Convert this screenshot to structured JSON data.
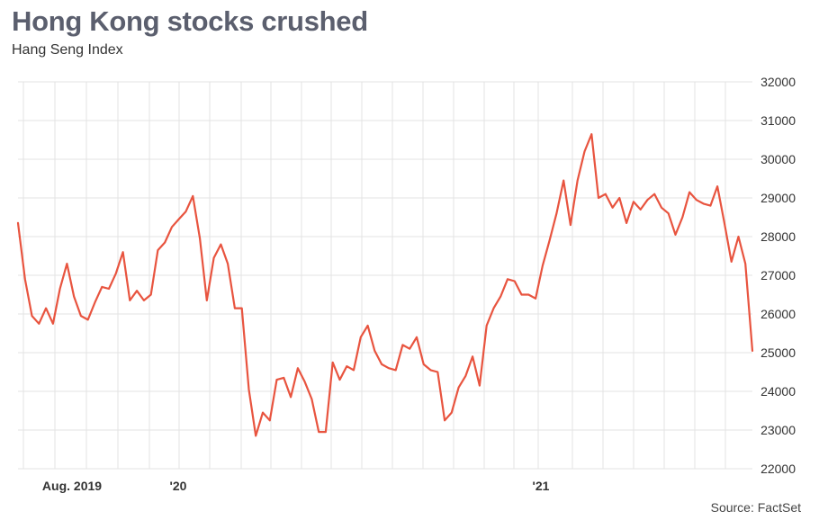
{
  "title": "Hong Kong stocks crushed",
  "subtitle": "Hang Seng Index",
  "source": "Source: FactSet",
  "colors": {
    "line": "#e8543f",
    "grid": "#e3e3e3",
    "title": "#5b5f6e"
  },
  "chart_data": {
    "type": "line",
    "title": "Hong Kong stocks crushed",
    "subtitle": "Hang Seng Index",
    "xlabel": "",
    "ylabel": "",
    "ylim": [
      22000,
      32000
    ],
    "y_ticks": [
      22000,
      23000,
      24000,
      25000,
      26000,
      27000,
      28000,
      29000,
      30000,
      31000,
      32000
    ],
    "y_axis_position": "right",
    "x_tick_labels": [
      "Aug. 2019",
      "'20",
      "'21"
    ],
    "grid": true,
    "frequency": "weekly",
    "series": [
      {
        "values": [
          28350,
          26900,
          25950,
          25750,
          26150,
          25750,
          26650,
          27300,
          26450,
          25950,
          25850,
          26300,
          26700,
          26650,
          27050,
          27600,
          26350,
          26600,
          26350,
          26500,
          27650,
          27850,
          28250,
          28450,
          28650,
          29050,
          27950,
          26350,
          27450,
          27800,
          27300,
          26150,
          26150,
          24050,
          22850,
          23450,
          23250,
          24300,
          24350,
          23850,
          24600,
          24250,
          23800,
          22950,
          22950,
          24750,
          24300,
          24650,
          24550,
          25400,
          25700,
          25050,
          24700,
          24600,
          24550,
          25200,
          25100,
          25400,
          24700,
          24550,
          24500,
          23250,
          23450,
          24100,
          24400,
          24900,
          24150,
          25700,
          26150,
          26450,
          26900,
          26850,
          26500,
          26500,
          26400,
          27250,
          27900,
          28600,
          29450,
          28300,
          29450,
          30200,
          30650,
          29000,
          29100,
          28750,
          29000,
          28350,
          28900,
          28700,
          28950,
          29100,
          28750,
          28600,
          28050,
          28500,
          29150,
          28950,
          28850,
          28800,
          29300,
          28350,
          27350,
          28000,
          27300,
          25050
        ]
      }
    ]
  }
}
